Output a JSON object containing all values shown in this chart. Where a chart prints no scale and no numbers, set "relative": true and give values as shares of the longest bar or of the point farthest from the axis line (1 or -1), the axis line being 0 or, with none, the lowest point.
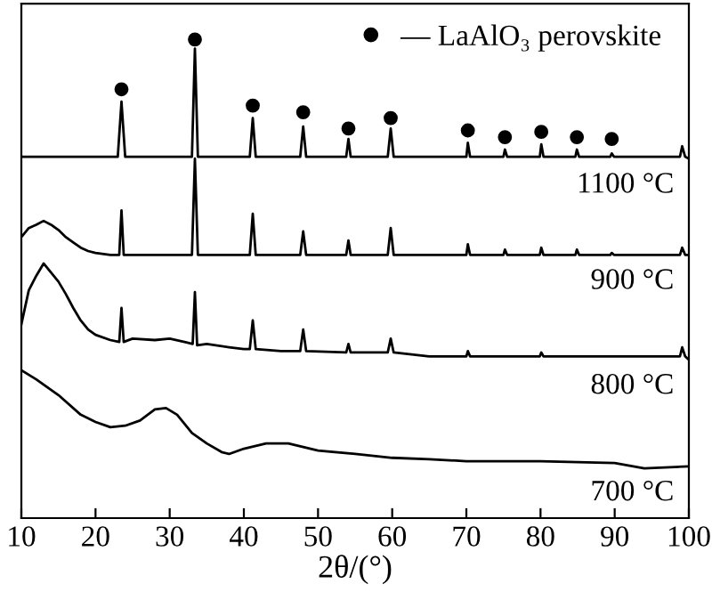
{
  "chart_data": {
    "type": "line",
    "relative": true,
    "xlabel": "2θ/(°)",
    "xlim": [
      10,
      100
    ],
    "xticks": [
      10,
      20,
      30,
      40,
      50,
      60,
      70,
      80,
      90,
      100
    ],
    "grid": false,
    "legend": "top right",
    "tick_labels": "x",
    "series": [
      {
        "name": "1100 °C",
        "color": "#000000",
        "x": [
          10,
          20,
          23.0,
          23.5,
          24.0,
          33.0,
          33.4,
          33.8,
          40.8,
          41.2,
          41.6,
          47.6,
          48.0,
          48.4,
          53.8,
          54.1,
          54.4,
          59.4,
          59.8,
          60.2,
          70.0,
          70.2,
          70.5,
          75.0,
          75.2,
          75.5,
          79.9,
          80.1,
          80.4,
          84.7,
          84.9,
          85.2,
          89.4,
          89.6,
          89.9,
          98.8,
          99.1,
          99.5,
          100
        ],
        "values": [
          0.755,
          0.755,
          0.755,
          0.87,
          0.755,
          0.755,
          0.981,
          0.755,
          0.755,
          0.836,
          0.755,
          0.755,
          0.818,
          0.755,
          0.755,
          0.792,
          0.755,
          0.755,
          0.814,
          0.755,
          0.755,
          0.784,
          0.755,
          0.755,
          0.77,
          0.755,
          0.755,
          0.781,
          0.755,
          0.755,
          0.77,
          0.755,
          0.755,
          0.762,
          0.755,
          0.755,
          0.777,
          0.755,
          0.751
        ]
      },
      {
        "name": "900 °C",
        "color": "#000000",
        "x": [
          10,
          11,
          12,
          13,
          14,
          15,
          16,
          17,
          18,
          19,
          20,
          22,
          23.2,
          23.5,
          23.8,
          33.0,
          33.4,
          33.8,
          40.8,
          41.2,
          41.6,
          47.6,
          48.0,
          48.4,
          53.8,
          54.1,
          54.4,
          59.4,
          59.8,
          60.2,
          70.0,
          70.2,
          70.5,
          75.0,
          75.2,
          75.5,
          79.9,
          80.1,
          80.4,
          84.7,
          84.9,
          85.2,
          89.4,
          89.6,
          89.9,
          98.8,
          99.1,
          99.5,
          100
        ],
        "values": [
          0.587,
          0.606,
          0.613,
          0.621,
          0.613,
          0.602,
          0.587,
          0.576,
          0.565,
          0.558,
          0.554,
          0.55,
          0.55,
          0.643,
          0.55,
          0.55,
          0.751,
          0.55,
          0.55,
          0.636,
          0.55,
          0.55,
          0.599,
          0.55,
          0.55,
          0.58,
          0.55,
          0.55,
          0.606,
          0.55,
          0.55,
          0.572,
          0.55,
          0.55,
          0.561,
          0.55,
          0.55,
          0.565,
          0.55,
          0.55,
          0.561,
          0.55,
          0.55,
          0.554,
          0.55,
          0.55,
          0.565,
          0.55,
          0.55
        ]
      },
      {
        "name": "800 °C",
        "color": "#000000",
        "x": [
          10,
          11,
          12,
          13,
          14,
          15,
          16,
          17,
          18,
          19,
          20,
          22,
          23.2,
          23.5,
          23.8,
          25,
          28,
          30,
          32,
          33.1,
          33.4,
          33.7,
          35,
          38,
          40,
          40.8,
          41.2,
          41.6,
          45,
          47.6,
          48.0,
          48.4,
          53.8,
          54.1,
          54.4,
          59.4,
          59.8,
          60.2,
          65,
          70.0,
          70.2,
          70.5,
          79.9,
          80.1,
          80.4,
          98.8,
          99.1,
          99.5,
          100
        ],
        "values": [
          0.405,
          0.476,
          0.506,
          0.532,
          0.513,
          0.494,
          0.468,
          0.439,
          0.413,
          0.394,
          0.383,
          0.372,
          0.368,
          0.439,
          0.368,
          0.375,
          0.372,
          0.375,
          0.368,
          0.364,
          0.472,
          0.361,
          0.364,
          0.357,
          0.353,
          0.353,
          0.413,
          0.353,
          0.349,
          0.349,
          0.394,
          0.349,
          0.346,
          0.364,
          0.346,
          0.346,
          0.375,
          0.346,
          0.338,
          0.338,
          0.349,
          0.338,
          0.338,
          0.346,
          0.338,
          0.338,
          0.357,
          0.338,
          0.331
        ]
      },
      {
        "name": "700 °C",
        "color": "#000000",
        "x": [
          10,
          12,
          15,
          18,
          20,
          22,
          24,
          26,
          28,
          29.5,
          31,
          33,
          35,
          37,
          38,
          40,
          43,
          46,
          50,
          55,
          60,
          65,
          70,
          80,
          90,
          94,
          100
        ],
        "values": [
          0.309,
          0.29,
          0.257,
          0.216,
          0.201,
          0.19,
          0.193,
          0.204,
          0.227,
          0.23,
          0.216,
          0.178,
          0.156,
          0.138,
          0.134,
          0.145,
          0.156,
          0.156,
          0.141,
          0.134,
          0.126,
          0.123,
          0.119,
          0.119,
          0.115,
          0.104,
          0.108
        ]
      },
      {
        "name": "— LaAlO₃ perovskite",
        "type": "scatter",
        "marker": "circle",
        "color": "#000000",
        "x": [
          23.5,
          33.4,
          41.2,
          48.0,
          54.1,
          59.8,
          70.2,
          75.2,
          80.1,
          84.9,
          89.6
        ],
        "values": [
          0.896,
          1.0,
          0.862,
          0.848,
          0.814,
          0.836,
          0.81,
          0.796,
          0.807,
          0.796,
          0.792
        ]
      }
    ]
  }
}
